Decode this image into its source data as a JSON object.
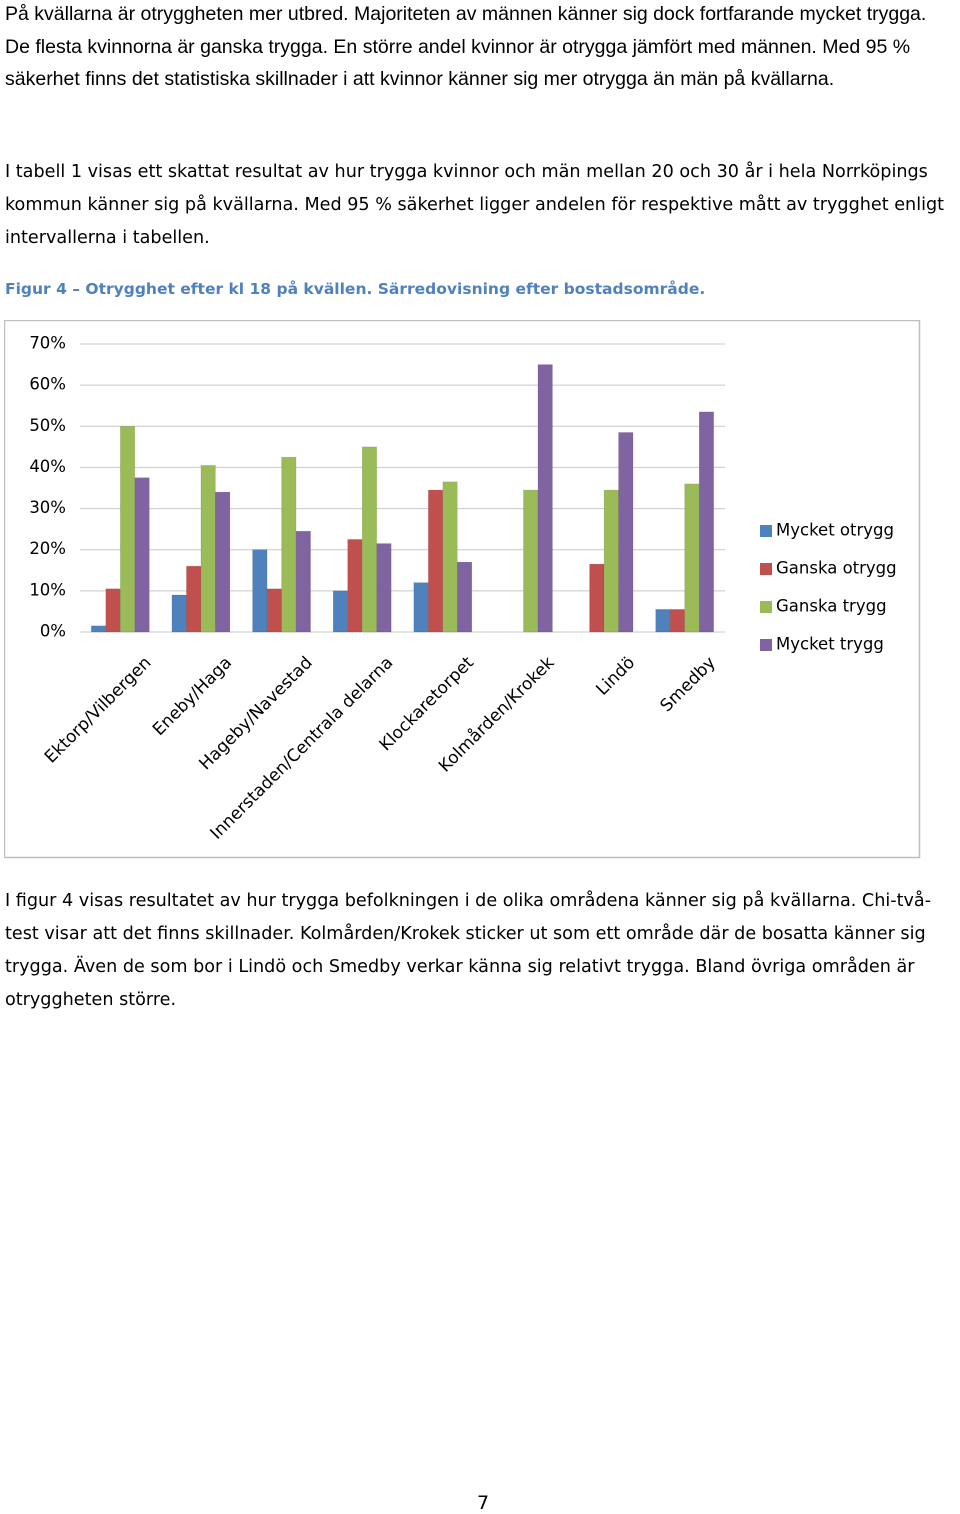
{
  "paragraphs": [
    "På kvällarna är otryggheten mer utbred. Majoriteten av männen känner sig dock fortfarande mycket trygga. De flesta kvinnorna är ganska trygga. En större andel kvinnor är otrygga jämfört med männen. Med 95 % säkerhet finns det statistiska skillnader i att kvinnor känner sig mer otrygga än män på kvällarna.",
    "I tabell 1 visas ett skattat resultat av hur trygga kvinnor och män mellan 20 och 30 år i hela Norrköpings kommun känner sig på kvällarna. Med 95 % säkerhet ligger andelen för respektive mått av trygghet enligt intervallerna i tabellen.",
    "I figur 4 visas resultatet av hur trygga befolkningen i de olika områdena känner sig på kvällarna. Chi-två-test visar att det finns skillnader. Kolmården/Krokek sticker ut som ett område där de bosatta känner sig trygga. Även de som bor i Lindö och Smedby verkar känna sig relativt trygga. Bland övriga områden är otryggheten större."
  ],
  "caption": "Figur 4 – Otrygghet efter kl 18 på kvällen. Särredovisning efter bostadsområde.",
  "page_number": "7",
  "chart_data": {
    "type": "bar",
    "categories": [
      "Ektorp/Vilbergen",
      "Eneby/Haga",
      "Hageby/Navestad",
      "Innerstaden/Centrala delarna",
      "Klockaretorpet",
      "Kolmården/Krokek",
      "Lindö",
      "Smedby"
    ],
    "series": [
      {
        "name": "Mycket otrygg",
        "color": "#4f81bd",
        "values": [
          1.5,
          9,
          20,
          10,
          12,
          0,
          0,
          5.5
        ]
      },
      {
        "name": "Ganska otrygg",
        "color": "#c0504d",
        "values": [
          10.5,
          16,
          10.5,
          22.5,
          34.5,
          0,
          16.5,
          5.5
        ]
      },
      {
        "name": "Ganska trygg",
        "color": "#9bbb59",
        "values": [
          50,
          40.5,
          42.5,
          45,
          36.5,
          34.5,
          34.5,
          36
        ]
      },
      {
        "name": "Mycket trygg",
        "color": "#8064a2",
        "values": [
          37.5,
          34,
          24.5,
          21.5,
          17,
          65,
          48.5,
          53.5
        ]
      }
    ],
    "ylim": [
      0,
      70
    ],
    "yticks": [
      {
        "value": 0,
        "label": "0%"
      },
      {
        "value": 10,
        "label": "10%"
      },
      {
        "value": 20,
        "label": "20%"
      },
      {
        "value": 30,
        "label": "30%"
      },
      {
        "value": 40,
        "label": "40%"
      },
      {
        "value": 50,
        "label": "50%"
      },
      {
        "value": 60,
        "label": "60%"
      },
      {
        "value": 70,
        "label": "70%"
      }
    ],
    "grid": true,
    "legend": "right"
  }
}
